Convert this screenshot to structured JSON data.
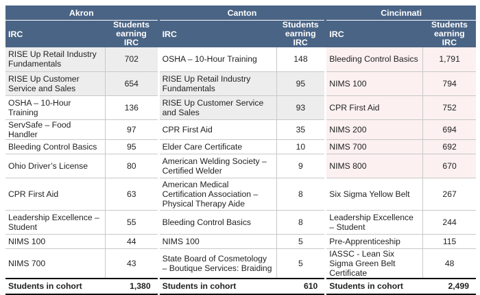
{
  "columns": {
    "city_names": [
      "Akron",
      "Canton",
      "Cincinnati"
    ],
    "irc_header": "IRC",
    "students_header_line1": "Students",
    "students_header_line2": "earning IRC"
  },
  "rows": [
    {
      "akron": {
        "irc": "RISE Up Retail Industry Fundamentals",
        "count": "702",
        "hl": true
      },
      "canton": {
        "irc": "OSHA – 10-Hour Training",
        "count": "148",
        "hl": false
      },
      "cincinnati": {
        "irc": "Bleeding Control Basics",
        "count": "1,791",
        "hl": true
      }
    },
    {
      "akron": {
        "irc": "RISE Up Customer Service and Sales",
        "count": "654",
        "hl": true
      },
      "canton": {
        "irc": "RISE Up Retail Industry Fundamentals",
        "count": "95",
        "hl": true
      },
      "cincinnati": {
        "irc": "NIMS 100",
        "count": "794",
        "hl": true
      }
    },
    {
      "akron": {
        "irc": "OSHA – 10-Hour Training",
        "count": "136",
        "hl": false
      },
      "canton": {
        "irc": "RISE Up Customer Service and Sales",
        "count": "93",
        "hl": true
      },
      "cincinnati": {
        "irc": "CPR First Aid",
        "count": "752",
        "hl": true
      }
    },
    {
      "akron": {
        "irc": "ServSafe – Food Handler",
        "count": "97",
        "hl": false
      },
      "canton": {
        "irc": "CPR First Aid",
        "count": "35",
        "hl": false
      },
      "cincinnati": {
        "irc": "NIMS 200",
        "count": "694",
        "hl": true
      }
    },
    {
      "akron": {
        "irc": "Bleeding Control Basics",
        "count": "95",
        "hl": false
      },
      "canton": {
        "irc": "Elder Care Certificate",
        "count": "10",
        "hl": false
      },
      "cincinnati": {
        "irc": "NIMS 700",
        "count": "692",
        "hl": true
      }
    },
    {
      "akron": {
        "irc": "Ohio Driver’s License",
        "count": "80",
        "hl": false
      },
      "canton": {
        "irc": "American Welding Society – Certified Welder",
        "count": "9",
        "hl": false
      },
      "cincinnati": {
        "irc": "NIMS 800",
        "count": "670",
        "hl": true
      }
    },
    {
      "akron": {
        "irc": "CPR First Aid",
        "count": "63",
        "hl": false
      },
      "canton": {
        "irc": "American Medical Certification Association – Physical Therapy Aide",
        "count": "8",
        "hl": false
      },
      "cincinnati": {
        "irc": "Six Sigma Yellow Belt",
        "count": "267",
        "hl": false
      }
    },
    {
      "akron": {
        "irc": "Leadership Excellence – Student",
        "count": "55",
        "hl": false
      },
      "canton": {
        "irc": "Bleeding Control Basics",
        "count": "8",
        "hl": false
      },
      "cincinnati": {
        "irc": "Leadership Excellence – Student",
        "count": "244",
        "hl": false
      }
    },
    {
      "akron": {
        "irc": "NIMS 100",
        "count": "44",
        "hl": false
      },
      "canton": {
        "irc": "NIMS 100",
        "count": "5",
        "hl": false
      },
      "cincinnati": {
        "irc": "Pre-Apprenticeship",
        "count": "115",
        "hl": false
      }
    },
    {
      "akron": {
        "irc": "NIMS 700",
        "count": "43",
        "hl": false
      },
      "canton": {
        "irc": "State Board of Cosmetology – Boutique Services: Braiding",
        "count": "5",
        "hl": false
      },
      "cincinnati": {
        "irc": "IASSC - Lean Six Sigma Green Belt Certificate",
        "count": "48",
        "hl": false
      }
    }
  ],
  "totals": {
    "label": "Students in cohort",
    "akron": "1,380",
    "canton": "610",
    "cincinnati": "2,499"
  },
  "highlight_colors": {
    "akron": "#ededed",
    "canton": "#ededed",
    "cincinnati": "#fcf0f0"
  },
  "header_color": "#4a6485"
}
